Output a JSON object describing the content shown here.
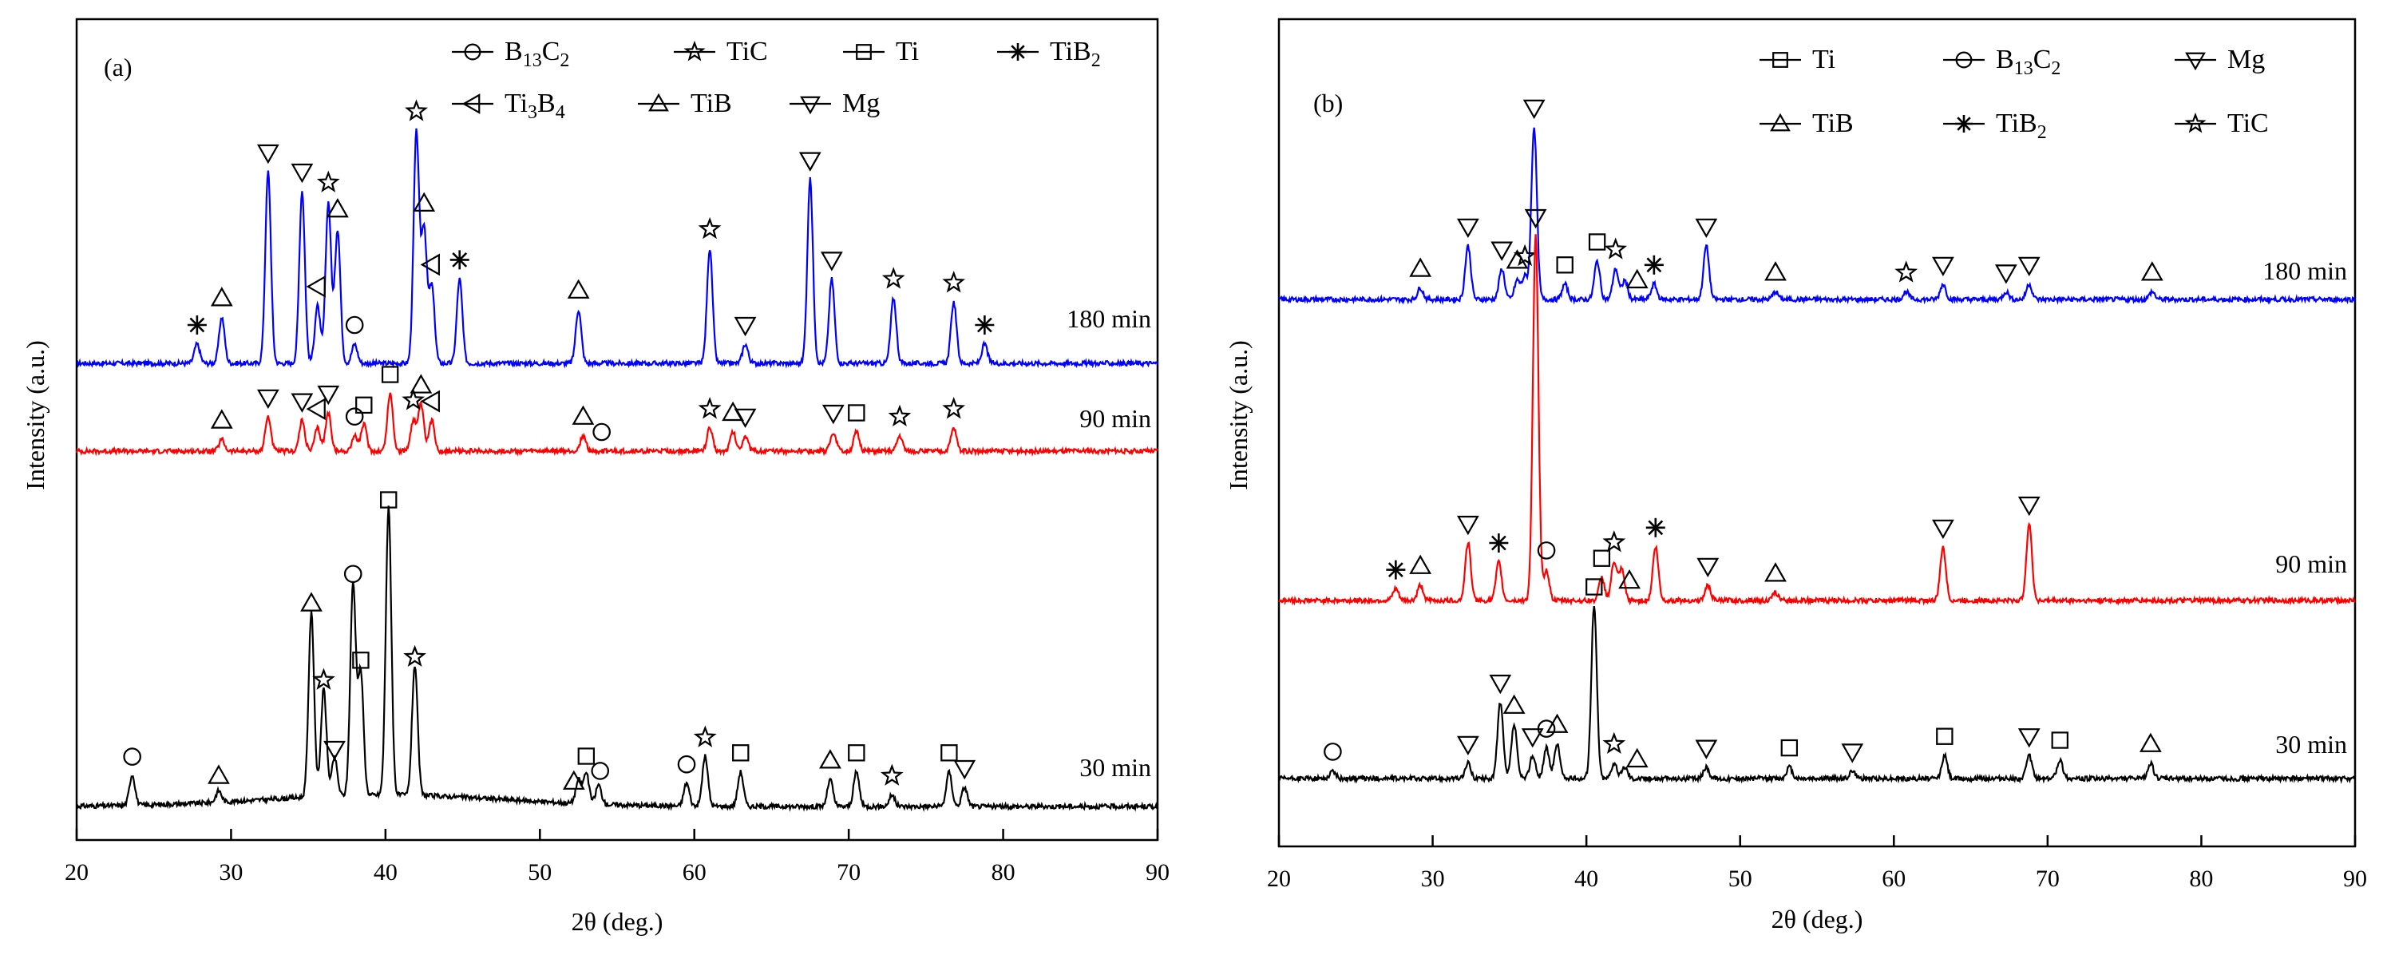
{
  "chart_data": [
    {
      "type": "line",
      "panel_label": "(a)",
      "xlabel": "2θ (deg.)",
      "ylabel": "Intensity (a.u.)",
      "xlim": [
        20,
        90
      ],
      "xticks": [
        "20",
        "30",
        "40",
        "50",
        "60",
        "70",
        "80",
        "90"
      ],
      "legend": [
        {
          "symbol": "circle",
          "base": "B",
          "sub1": "13",
          "mid": "C",
          "sub2": "2"
        },
        {
          "symbol": "star",
          "base": "TiC"
        },
        {
          "symbol": "square",
          "base": "Ti"
        },
        {
          "symbol": "asterisk",
          "base": "TiB",
          "sub1": "2"
        },
        {
          "symbol": "tri-left",
          "base": "Ti",
          "sub1": "3",
          "mid": "B",
          "sub2": "4"
        },
        {
          "symbol": "tri-up",
          "base": "TiB"
        },
        {
          "symbol": "tri-down",
          "base": "Mg"
        }
      ],
      "series": [
        {
          "name": "180 min",
          "color": "#0000ff",
          "peaks": [
            [
              27.8,
              0.05
            ],
            [
              29.4,
              0.12
            ],
            [
              32.4,
              0.5
            ],
            [
              34.6,
              0.45
            ],
            [
              35.6,
              0.15
            ],
            [
              36.3,
              0.42
            ],
            [
              36.9,
              0.35
            ],
            [
              38.0,
              0.05
            ],
            [
              42.0,
              0.6
            ],
            [
              42.5,
              0.35
            ],
            [
              43.0,
              0.2
            ],
            [
              44.8,
              0.22
            ],
            [
              52.5,
              0.14
            ],
            [
              61.0,
              0.3
            ],
            [
              63.3,
              0.05
            ],
            [
              67.5,
              0.48
            ],
            [
              68.9,
              0.22
            ],
            [
              72.9,
              0.17
            ],
            [
              76.8,
              0.16
            ],
            [
              78.8,
              0.05
            ]
          ],
          "markers": [
            [
              "asterisk",
              27.8
            ],
            [
              "tri-up",
              29.4
            ],
            [
              "tri-down",
              32.4
            ],
            [
              "tri-down",
              34.6
            ],
            [
              "tri-left",
              35.6
            ],
            [
              "star",
              36.3
            ],
            [
              "tri-up",
              36.9
            ],
            [
              "circle",
              38.0
            ],
            [
              "star",
              42.0
            ],
            [
              "tri-up",
              42.5
            ],
            [
              "tri-left",
              43.0
            ],
            [
              "asterisk",
              44.8
            ],
            [
              "tri-up",
              52.5
            ],
            [
              "star",
              61.0
            ],
            [
              "tri-down",
              63.3
            ],
            [
              "tri-down",
              67.5
            ],
            [
              "tri-down",
              68.9
            ],
            [
              "star",
              72.9
            ],
            [
              "star",
              76.8
            ],
            [
              "asterisk",
              78.8
            ]
          ]
        },
        {
          "name": "90 min",
          "color": "#ff0000",
          "peaks": [
            [
              29.4,
              0.03
            ],
            [
              32.4,
              0.09
            ],
            [
              34.6,
              0.08
            ],
            [
              35.6,
              0.06
            ],
            [
              36.3,
              0.1
            ],
            [
              38.0,
              0.04
            ],
            [
              38.6,
              0.07
            ],
            [
              40.3,
              0.15
            ],
            [
              41.8,
              0.08
            ],
            [
              42.3,
              0.12
            ],
            [
              43.0,
              0.08
            ],
            [
              52.8,
              0.04
            ],
            [
              61.0,
              0.06
            ],
            [
              62.5,
              0.05
            ],
            [
              63.3,
              0.04
            ],
            [
              69.0,
              0.05
            ],
            [
              70.5,
              0.05
            ],
            [
              73.3,
              0.04
            ],
            [
              76.8,
              0.06
            ]
          ],
          "markers": [
            [
              "tri-up",
              29.4
            ],
            [
              "tri-down",
              32.4
            ],
            [
              "tri-down",
              34.6
            ],
            [
              "tri-left",
              35.6
            ],
            [
              "tri-down",
              36.3
            ],
            [
              "circle",
              38.0
            ],
            [
              "square",
              38.6
            ],
            [
              "square",
              40.3
            ],
            [
              "star",
              41.8
            ],
            [
              "tri-up",
              42.3
            ],
            [
              "tri-left",
              43.0
            ],
            [
              "tri-up",
              52.8
            ],
            [
              "circle",
              54.0
            ],
            [
              "star",
              61.0
            ],
            [
              "tri-up",
              62.5
            ],
            [
              "tri-down",
              63.3
            ],
            [
              "tri-down",
              69.0
            ],
            [
              "square",
              70.5
            ],
            [
              "star",
              73.3
            ],
            [
              "star",
              76.8
            ]
          ]
        },
        {
          "name": "30 min",
          "color": "#000000",
          "peaks": [
            [
              23.6,
              0.08
            ],
            [
              29.2,
              0.03
            ],
            [
              35.2,
              0.48
            ],
            [
              36.0,
              0.28
            ],
            [
              36.7,
              0.1
            ],
            [
              37.9,
              0.55
            ],
            [
              38.4,
              0.32
            ],
            [
              40.2,
              0.75
            ],
            [
              41.9,
              0.34
            ],
            [
              52.5,
              0.06
            ],
            [
              53.0,
              0.08
            ],
            [
              53.8,
              0.05
            ],
            [
              59.5,
              0.06
            ],
            [
              60.7,
              0.13
            ],
            [
              63.0,
              0.09
            ],
            [
              68.8,
              0.07
            ],
            [
              70.5,
              0.09
            ],
            [
              72.8,
              0.03
            ],
            [
              76.5,
              0.09
            ],
            [
              77.5,
              0.05
            ]
          ],
          "markers": [
            [
              "circle",
              23.6
            ],
            [
              "tri-up",
              29.2
            ],
            [
              "tri-up",
              35.2
            ],
            [
              "star",
              36.0
            ],
            [
              "tri-down",
              36.7
            ],
            [
              "circle",
              37.9
            ],
            [
              "square",
              38.4
            ],
            [
              "square",
              40.2
            ],
            [
              "star",
              41.9
            ],
            [
              "tri-up",
              52.2
            ],
            [
              "square",
              53.0
            ],
            [
              "circle",
              53.9
            ],
            [
              "circle",
              59.5
            ],
            [
              "star",
              60.7
            ],
            [
              "square",
              63.0
            ],
            [
              "tri-up",
              68.8
            ],
            [
              "square",
              70.5
            ],
            [
              "star",
              72.8
            ],
            [
              "square",
              76.5
            ],
            [
              "tri-down",
              77.5
            ]
          ]
        }
      ]
    },
    {
      "type": "line",
      "panel_label": "(b)",
      "xlabel": "2θ (deg.)",
      "ylabel": "Intensity (a.u.)",
      "xlim": [
        20,
        90
      ],
      "xticks": [
        "20",
        "30",
        "40",
        "50",
        "60",
        "70",
        "80",
        "90"
      ],
      "legend": [
        {
          "symbol": "square",
          "base": "Ti"
        },
        {
          "symbol": "circle",
          "base": "B",
          "sub1": "13",
          "mid": "C",
          "sub2": "2"
        },
        {
          "symbol": "tri-down",
          "base": "Mg"
        },
        {
          "symbol": "tri-up",
          "base": "TiB"
        },
        {
          "symbol": "asterisk",
          "base": "TiB",
          "sub1": "2"
        },
        {
          "symbol": "star",
          "base": "TiC"
        }
      ],
      "series": [
        {
          "name": "180 min",
          "color": "#0000ff",
          "peaks": [
            [
              29.2,
              0.03
            ],
            [
              32.3,
              0.14
            ],
            [
              34.5,
              0.08
            ],
            [
              35.5,
              0.05
            ],
            [
              36.0,
              0.06
            ],
            [
              36.6,
              0.45
            ],
            [
              38.6,
              0.04
            ],
            [
              40.7,
              0.1
            ],
            [
              41.9,
              0.08
            ],
            [
              42.5,
              0.05
            ],
            [
              44.4,
              0.04
            ],
            [
              47.8,
              0.14
            ],
            [
              52.3,
              0.02
            ],
            [
              60.8,
              0.02
            ],
            [
              63.2,
              0.04
            ],
            [
              67.3,
              0.02
            ],
            [
              68.8,
              0.04
            ],
            [
              76.8,
              0.02
            ]
          ],
          "markers": [
            [
              "tri-up",
              29.2
            ],
            [
              "tri-down",
              32.3
            ],
            [
              "tri-down",
              34.5
            ],
            [
              "tri-up",
              35.5
            ],
            [
              "star",
              36.0
            ],
            [
              "tri-down",
              36.6
            ],
            [
              "square",
              38.6
            ],
            [
              "square",
              40.7
            ],
            [
              "star",
              41.9
            ],
            [
              "tri-up",
              43.3
            ],
            [
              "asterisk",
              44.4
            ],
            [
              "tri-down",
              47.8
            ],
            [
              "tri-up",
              52.3
            ],
            [
              "star",
              60.8
            ],
            [
              "tri-down",
              63.2
            ],
            [
              "tri-down",
              67.3
            ],
            [
              "tri-down",
              68.8
            ],
            [
              "tri-up",
              76.8
            ]
          ]
        },
        {
          "name": "90 min",
          "color": "#ff0000",
          "peaks": [
            [
              27.6,
              0.03
            ],
            [
              29.2,
              0.04
            ],
            [
              32.3,
              0.15
            ],
            [
              34.3,
              0.1
            ],
            [
              36.7,
              0.95
            ],
            [
              37.4,
              0.08
            ],
            [
              41.0,
              0.06
            ],
            [
              41.8,
              0.1
            ],
            [
              42.3,
              0.08
            ],
            [
              44.5,
              0.14
            ],
            [
              47.9,
              0.04
            ],
            [
              52.3,
              0.02
            ],
            [
              63.2,
              0.14
            ],
            [
              68.8,
              0.2
            ]
          ],
          "markers": [
            [
              "asterisk",
              27.6
            ],
            [
              "tri-up",
              29.2
            ],
            [
              "tri-down",
              32.3
            ],
            [
              "asterisk",
              34.3
            ],
            [
              "tri-down",
              36.7
            ],
            [
              "circle",
              37.4
            ],
            [
              "square",
              41.0
            ],
            [
              "star",
              41.8
            ],
            [
              "tri-up",
              42.8
            ],
            [
              "asterisk",
              44.5
            ],
            [
              "tri-down",
              47.9
            ],
            [
              "tri-up",
              52.3
            ],
            [
              "tri-down",
              63.2
            ],
            [
              "tri-down",
              68.8
            ]
          ]
        },
        {
          "name": "30 min",
          "color": "#000000",
          "peaks": [
            [
              23.5,
              0.02
            ],
            [
              32.3,
              0.04
            ],
            [
              34.4,
              0.2
            ],
            [
              35.3,
              0.14
            ],
            [
              36.5,
              0.06
            ],
            [
              37.4,
              0.08
            ],
            [
              38.1,
              0.09
            ],
            [
              40.5,
              0.45
            ],
            [
              41.8,
              0.04
            ],
            [
              42.5,
              0.03
            ],
            [
              47.8,
              0.03
            ],
            [
              53.2,
              0.03
            ],
            [
              57.3,
              0.02
            ],
            [
              63.3,
              0.06
            ],
            [
              68.8,
              0.06
            ],
            [
              70.8,
              0.05
            ],
            [
              76.7,
              0.04
            ]
          ],
          "markers": [
            [
              "circle",
              23.5
            ],
            [
              "tri-down",
              32.3
            ],
            [
              "tri-down",
              34.4
            ],
            [
              "tri-up",
              35.3
            ],
            [
              "tri-down",
              36.5
            ],
            [
              "circle",
              37.4
            ],
            [
              "tri-up",
              38.1
            ],
            [
              "square",
              40.5
            ],
            [
              "star",
              41.8
            ],
            [
              "tri-up",
              43.3
            ],
            [
              "tri-down",
              47.8
            ],
            [
              "square",
              53.2
            ],
            [
              "tri-down",
              57.3
            ],
            [
              "square",
              63.3
            ],
            [
              "tri-down",
              68.8
            ],
            [
              "square",
              70.8
            ],
            [
              "tri-up",
              76.7
            ]
          ]
        }
      ]
    }
  ]
}
